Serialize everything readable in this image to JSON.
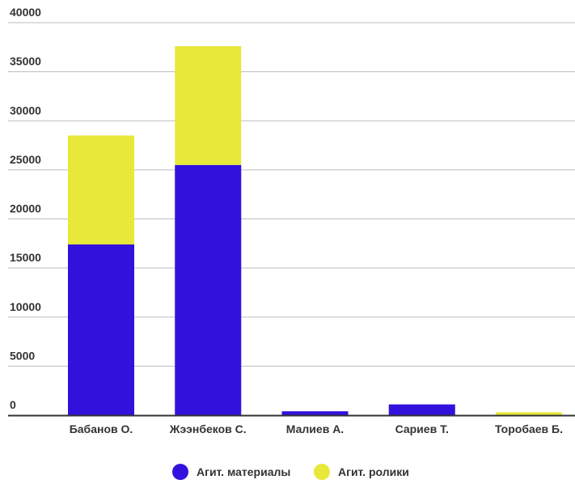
{
  "chart_data": {
    "type": "bar",
    "stacked": true,
    "categories": [
      "Бабанов О.",
      "Жээнбеков С.",
      "Малиев А.",
      "Сариев Т.",
      "Торобаев Б."
    ],
    "series": [
      {
        "name": "Агит. материалы",
        "color": "#3311dd",
        "values": [
          17400,
          25500,
          400,
          1100,
          0
        ]
      },
      {
        "name": "Агит. ролики",
        "color": "#e8e83a",
        "values": [
          11100,
          12100,
          0,
          0,
          300
        ]
      }
    ],
    "ylim": [
      0,
      40000
    ],
    "yticks": [
      0,
      5000,
      10000,
      15000,
      20000,
      25000,
      30000,
      35000,
      40000
    ],
    "grid": true,
    "legend_position": "bottom"
  }
}
